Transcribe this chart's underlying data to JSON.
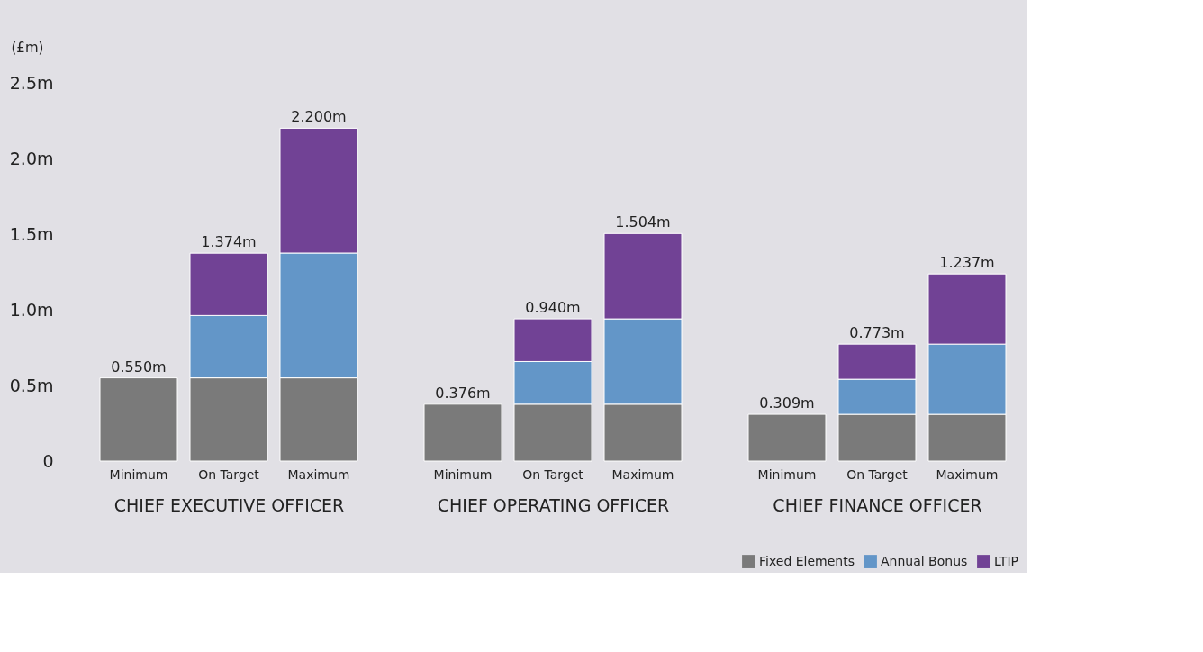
{
  "chart_data": [
    {
      "type": "bar",
      "stacked": true,
      "xlabel": "CHIEF EXECUTIVE OFFICER",
      "ylabel": "(£m)",
      "categories": [
        "Minimum",
        "On Target",
        "Maximum"
      ],
      "series": [
        {
          "color": "#7a7a7a",
          "values": [
            0.55,
            0.55,
            0.55
          ]
        },
        {
          "color": "#6396c8",
          "values": [
            null,
            0.412,
            0.825
          ]
        },
        {
          "color": "#714295",
          "values": [
            null,
            0.412,
            0.825
          ]
        }
      ],
      "totals": [
        "0.550m",
        "1.374m",
        "2.200m"
      ],
      "ylim": [
        0,
        2.5
      ],
      "yticks": [
        0,
        {
          "value": 0.5,
          "label": "0.5m"
        },
        {
          "value": 1.0,
          "label": "1.0m"
        },
        {
          "value": 1.5,
          "label": "1.5m"
        },
        {
          "value": 2.0,
          "label": "2.0m"
        },
        {
          "value": 2.5,
          "label": "2.5m"
        }
      ],
      "grid": false
    },
    {
      "type": "bar",
      "stacked": true,
      "xlabel": "CHIEF OPERATING OFFICER",
      "categories": [
        "Minimum",
        "On Target",
        "Maximum"
      ],
      "series": [
        {
          "color": "#7a7a7a",
          "values": [
            0.376,
            0.376,
            0.376
          ]
        },
        {
          "color": "#6396c8",
          "values": [
            null,
            0.282,
            0.564
          ]
        },
        {
          "color": "#714295",
          "values": [
            null,
            0.282,
            0.564
          ]
        }
      ],
      "totals": [
        "0.376m",
        "0.940m",
        "1.504m"
      ],
      "ylim": [
        0,
        2.5
      ],
      "tick_labels": "x",
      "grid": false
    },
    {
      "type": "bar",
      "stacked": true,
      "xlabel": "CHIEF FINANCE OFFICER",
      "categories": [
        "Minimum",
        "On Target",
        "Maximum"
      ],
      "series": [
        {
          "name": "Fixed Elements",
          "color": "#7a7a7a",
          "values": [
            0.309,
            0.309,
            0.309
          ]
        },
        {
          "name": "Annual Bonus",
          "color": "#6396c8",
          "values": [
            null,
            0.232,
            0.464
          ]
        },
        {
          "name": "LTIP",
          "color": "#714295",
          "values": [
            null,
            0.232,
            0.464
          ]
        }
      ],
      "totals": [
        "0.309m",
        "0.773m",
        "1.237m"
      ],
      "ylim": [
        0,
        2.5
      ],
      "tick_labels": "x",
      "legend": "bottom right",
      "grid": false
    }
  ]
}
